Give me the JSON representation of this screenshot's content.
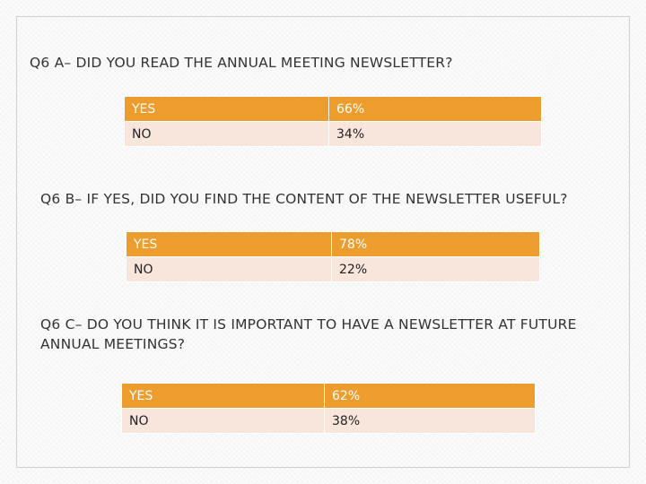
{
  "questions": [
    {
      "text": "Q6 A– DID YOU READ THE ANNUAL MEETING NEWSLETTER?",
      "rows": [
        {
          "answer": "YES",
          "percent": "66%"
        },
        {
          "answer": "NO",
          "percent": "34%"
        }
      ]
    },
    {
      "text": "Q6 B– IF YES, DID YOU FIND THE CONTENT OF THE NEWSLETTER USEFUL?",
      "rows": [
        {
          "answer": "YES",
          "percent": "78%"
        },
        {
          "answer": "NO",
          "percent": "22%"
        }
      ]
    },
    {
      "text_line1": "Q6 C– DO YOU THINK IT IS IMPORTANT TO HAVE A NEWSLETTER AT FUTURE",
      "text_line2": "ANNUAL MEETINGS?",
      "rows": [
        {
          "answer": "YES",
          "percent": "62%"
        },
        {
          "answer": "NO",
          "percent": "38%"
        }
      ]
    }
  ],
  "colors": {
    "header_row": "#ec9d2d",
    "body_row": "#f8e6dc",
    "text": "#333333"
  }
}
